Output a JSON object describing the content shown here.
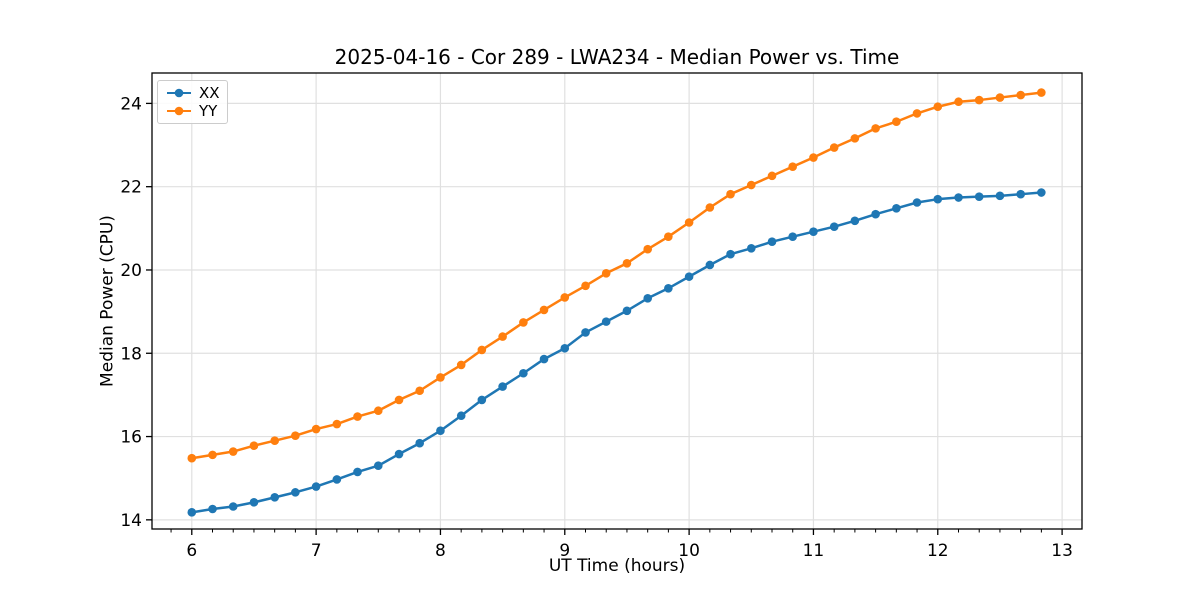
{
  "chart_data": {
    "type": "line",
    "title": "2025-04-16 - Cor 289 - LWA234 - Median Power vs. Time",
    "xlabel": "UT Time (hours)",
    "ylabel": "Median Power (CPU)",
    "xlim": [
      5.68,
      13.16
    ],
    "ylim": [
      13.78,
      24.73
    ],
    "xticks": [
      6,
      7,
      8,
      9,
      10,
      11,
      12,
      13
    ],
    "yticks": [
      14,
      16,
      18,
      20,
      22,
      24
    ],
    "minor_tick_step_x": 0.1667,
    "grid": "major",
    "grid_color": "#e0e0e0",
    "legend_position": "upper left",
    "x": [
      6.0,
      6.167,
      6.333,
      6.5,
      6.667,
      6.833,
      7.0,
      7.167,
      7.333,
      7.5,
      7.667,
      7.833,
      8.0,
      8.167,
      8.333,
      8.5,
      8.667,
      8.833,
      9.0,
      9.167,
      9.333,
      9.5,
      9.667,
      9.833,
      10.0,
      10.167,
      10.333,
      10.5,
      10.667,
      10.833,
      11.0,
      11.167,
      11.333,
      11.5,
      11.667,
      11.833,
      12.0,
      12.167,
      12.333,
      12.5,
      12.667,
      12.833
    ],
    "series": [
      {
        "name": "XX",
        "color": "#1f77b4",
        "values": [
          14.18,
          14.26,
          14.32,
          14.42,
          14.54,
          14.66,
          14.8,
          14.97,
          15.15,
          15.3,
          15.58,
          15.84,
          16.14,
          16.5,
          16.88,
          17.2,
          17.52,
          17.86,
          18.12,
          18.5,
          18.76,
          19.02,
          19.32,
          19.56,
          19.84,
          20.12,
          20.38,
          20.52,
          20.68,
          20.8,
          20.92,
          21.04,
          21.18,
          21.34,
          21.48,
          21.62,
          21.7,
          21.74,
          21.76,
          21.78,
          21.82,
          21.86
        ]
      },
      {
        "name": "YY",
        "color": "#ff7f0e",
        "values": [
          15.48,
          15.56,
          15.64,
          15.78,
          15.9,
          16.02,
          16.18,
          16.3,
          16.48,
          16.62,
          16.88,
          17.1,
          17.42,
          17.72,
          18.08,
          18.4,
          18.74,
          19.04,
          19.34,
          19.62,
          19.92,
          20.16,
          20.5,
          20.8,
          21.14,
          21.5,
          21.82,
          22.04,
          22.26,
          22.48,
          22.7,
          22.94,
          23.16,
          23.4,
          23.56,
          23.76,
          23.92,
          24.04,
          24.08,
          24.14,
          24.2,
          24.26
        ]
      }
    ]
  }
}
